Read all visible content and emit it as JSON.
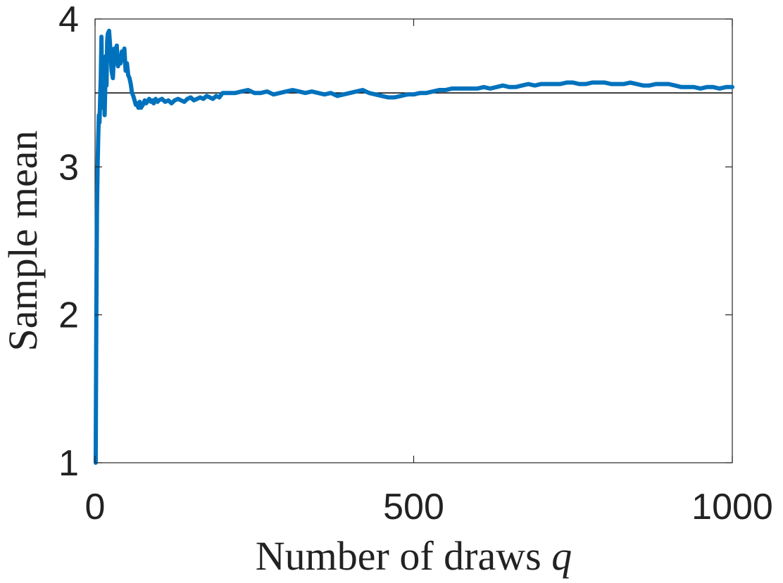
{
  "chart_data": {
    "type": "line",
    "title": "",
    "xlabel": "Number of draws",
    "xlabel_var": "q",
    "ylabel": "Sample mean",
    "xlim": [
      0,
      1000
    ],
    "ylim": [
      1,
      4
    ],
    "xticks": [
      0,
      500,
      1000
    ],
    "yticks": [
      1,
      2,
      3,
      4
    ],
    "xtick_labels": [
      "0",
      "500",
      "1000"
    ],
    "ytick_labels": [
      "1",
      "2",
      "3",
      "4"
    ],
    "grid": false,
    "legend": "none",
    "reference_line": {
      "y": 3.5,
      "color": "#000000"
    },
    "series": [
      {
        "color": "#0072BD",
        "x": [
          1,
          2,
          3,
          4,
          5,
          6,
          7,
          8,
          9,
          10,
          11,
          12,
          13,
          14,
          15,
          16,
          17,
          18,
          19,
          20,
          22,
          24,
          26,
          28,
          30,
          32,
          34,
          36,
          38,
          40,
          42,
          44,
          46,
          48,
          50,
          52,
          54,
          56,
          58,
          60,
          62,
          64,
          66,
          68,
          70,
          72,
          75,
          78,
          80,
          82,
          85,
          88,
          90,
          92,
          95,
          98,
          100,
          105,
          110,
          115,
          120,
          125,
          130,
          135,
          140,
          145,
          150,
          155,
          160,
          165,
          170,
          175,
          180,
          185,
          190,
          195,
          200,
          210,
          220,
          230,
          240,
          250,
          260,
          270,
          280,
          290,
          300,
          310,
          320,
          330,
          340,
          350,
          360,
          370,
          380,
          390,
          400,
          410,
          420,
          430,
          440,
          450,
          460,
          470,
          480,
          490,
          500,
          510,
          520,
          530,
          540,
          550,
          560,
          570,
          580,
          590,
          600,
          610,
          620,
          630,
          640,
          650,
          660,
          670,
          680,
          690,
          700,
          710,
          720,
          730,
          740,
          750,
          760,
          770,
          780,
          790,
          800,
          810,
          820,
          830,
          840,
          850,
          860,
          870,
          880,
          890,
          900,
          910,
          920,
          930,
          940,
          950,
          960,
          970,
          980,
          990,
          1000
        ],
        "y": [
          1.0,
          2.0,
          2.7,
          3.0,
          3.2,
          3.35,
          3.3,
          3.45,
          3.6,
          3.88,
          3.55,
          3.4,
          3.5,
          3.7,
          3.35,
          3.55,
          3.75,
          3.55,
          3.85,
          3.9,
          3.92,
          3.8,
          3.65,
          3.6,
          3.8,
          3.7,
          3.82,
          3.68,
          3.75,
          3.7,
          3.78,
          3.72,
          3.8,
          3.65,
          3.7,
          3.62,
          3.6,
          3.56,
          3.5,
          3.48,
          3.45,
          3.42,
          3.43,
          3.4,
          3.44,
          3.4,
          3.42,
          3.45,
          3.43,
          3.44,
          3.46,
          3.44,
          3.45,
          3.43,
          3.46,
          3.44,
          3.45,
          3.46,
          3.44,
          3.45,
          3.43,
          3.45,
          3.46,
          3.45,
          3.44,
          3.46,
          3.47,
          3.45,
          3.46,
          3.47,
          3.46,
          3.48,
          3.47,
          3.46,
          3.48,
          3.47,
          3.5,
          3.5,
          3.5,
          3.51,
          3.52,
          3.5,
          3.5,
          3.51,
          3.49,
          3.5,
          3.51,
          3.52,
          3.51,
          3.5,
          3.51,
          3.5,
          3.49,
          3.5,
          3.48,
          3.49,
          3.5,
          3.51,
          3.52,
          3.5,
          3.49,
          3.48,
          3.47,
          3.47,
          3.48,
          3.49,
          3.49,
          3.5,
          3.5,
          3.51,
          3.52,
          3.52,
          3.53,
          3.53,
          3.53,
          3.53,
          3.53,
          3.54,
          3.53,
          3.54,
          3.55,
          3.54,
          3.54,
          3.55,
          3.56,
          3.55,
          3.56,
          3.56,
          3.56,
          3.56,
          3.57,
          3.57,
          3.56,
          3.56,
          3.57,
          3.57,
          3.57,
          3.56,
          3.56,
          3.56,
          3.57,
          3.56,
          3.55,
          3.55,
          3.56,
          3.56,
          3.56,
          3.55,
          3.54,
          3.54,
          3.54,
          3.53,
          3.54,
          3.54,
          3.53,
          3.54,
          3.54
        ]
      }
    ]
  }
}
